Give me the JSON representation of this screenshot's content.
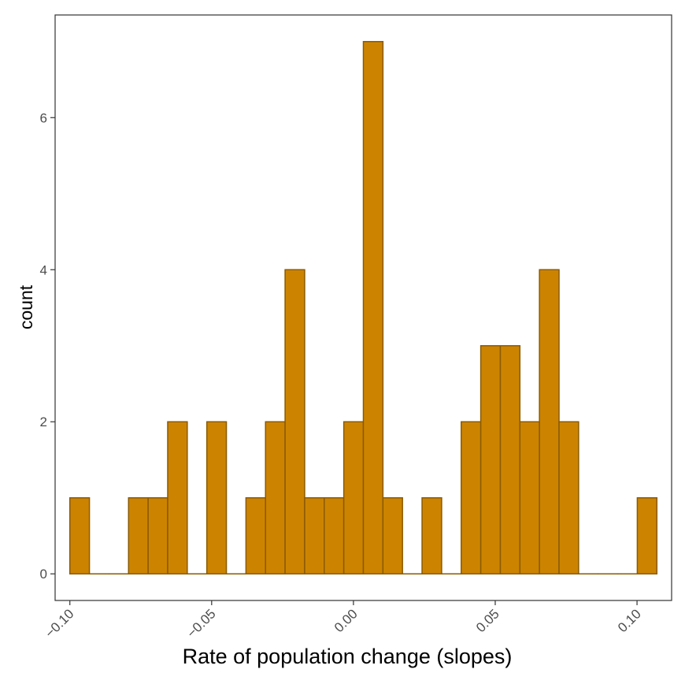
{
  "chart_data": {
    "type": "bar",
    "xlabel": "Rate of population change (slopes)",
    "ylabel": "count",
    "bin_width": 0.006897,
    "bins": [
      {
        "x0": -0.1,
        "x1": -0.0931,
        "count": 1
      },
      {
        "x0": -0.0931,
        "x1": -0.0862,
        "count": 0
      },
      {
        "x0": -0.0862,
        "x1": -0.0793,
        "count": 0
      },
      {
        "x0": -0.0793,
        "x1": -0.0724,
        "count": 1
      },
      {
        "x0": -0.0724,
        "x1": -0.0655,
        "count": 1
      },
      {
        "x0": -0.0655,
        "x1": -0.0586,
        "count": 2
      },
      {
        "x0": -0.0586,
        "x1": -0.0517,
        "count": 0
      },
      {
        "x0": -0.0517,
        "x1": -0.0448,
        "count": 2
      },
      {
        "x0": -0.0448,
        "x1": -0.0379,
        "count": 0
      },
      {
        "x0": -0.0379,
        "x1": -0.031,
        "count": 1
      },
      {
        "x0": -0.031,
        "x1": -0.0241,
        "count": 2
      },
      {
        "x0": -0.0241,
        "x1": -0.0172,
        "count": 4
      },
      {
        "x0": -0.0172,
        "x1": -0.0103,
        "count": 1
      },
      {
        "x0": -0.0103,
        "x1": -0.0034,
        "count": 1
      },
      {
        "x0": -0.0034,
        "x1": 0.0035,
        "count": 2
      },
      {
        "x0": 0.0035,
        "x1": 0.0104,
        "count": 7
      },
      {
        "x0": 0.0104,
        "x1": 0.0173,
        "count": 1
      },
      {
        "x0": 0.0173,
        "x1": 0.0242,
        "count": 0
      },
      {
        "x0": 0.0242,
        "x1": 0.0311,
        "count": 1
      },
      {
        "x0": 0.0311,
        "x1": 0.038,
        "count": 0
      },
      {
        "x0": 0.038,
        "x1": 0.0449,
        "count": 2
      },
      {
        "x0": 0.0449,
        "x1": 0.0518,
        "count": 3
      },
      {
        "x0": 0.0518,
        "x1": 0.0587,
        "count": 3
      },
      {
        "x0": 0.0587,
        "x1": 0.0656,
        "count": 2
      },
      {
        "x0": 0.0656,
        "x1": 0.0725,
        "count": 4
      },
      {
        "x0": 0.0725,
        "x1": 0.0794,
        "count": 2
      },
      {
        "x0": 0.0794,
        "x1": 0.0863,
        "count": 0
      },
      {
        "x0": 0.0863,
        "x1": 0.0932,
        "count": 0
      },
      {
        "x0": 0.0932,
        "x1": 0.1001,
        "count": 0
      },
      {
        "x0": 0.1001,
        "x1": 0.107,
        "count": 1
      }
    ],
    "xlim": [
      -0.1052,
      0.1122
    ],
    "ylim": [
      -0.35,
      7.35
    ],
    "x_ticks": [
      -0.1,
      -0.05,
      0.0,
      0.05,
      0.1
    ],
    "x_tick_labels": [
      "−0.10",
      "−0.05",
      "0.00",
      "0.05",
      "0.10"
    ],
    "y_ticks": [
      0,
      2,
      4,
      6
    ],
    "y_tick_labels": [
      "0",
      "2",
      "4",
      "6"
    ],
    "grid": false,
    "colors": {
      "bar_fill": "#CC8400",
      "bar_outline": "#8B5A00",
      "panel_border": "#333333",
      "tick_mark": "#333333",
      "tick_label": "#4D4D4D",
      "axis_title": "#000000"
    }
  }
}
